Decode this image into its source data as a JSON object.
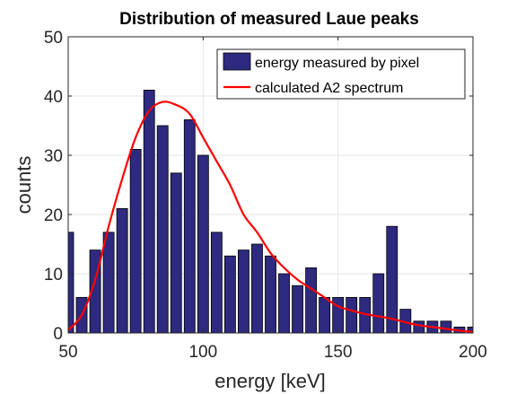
{
  "chart_data": {
    "type": "bar",
    "title": "Distribution of measured Laue peaks",
    "xlabel": "energy [keV]",
    "ylabel": "counts",
    "xlim": [
      50,
      200
    ],
    "ylim": [
      0,
      50
    ],
    "xticks": [
      "50",
      "100",
      "150",
      "200"
    ],
    "yticks": [
      "0",
      "10",
      "20",
      "30",
      "40",
      "50"
    ],
    "grid": true,
    "legend_position": "top-right",
    "colors": {
      "bars": "#2e2a7f",
      "curve": "#ff0000"
    },
    "series": [
      {
        "name": "energy measured by pixel",
        "type": "bar",
        "x": [
          50,
          55,
          60,
          65,
          70,
          75,
          80,
          85,
          90,
          95,
          100,
          105,
          110,
          115,
          120,
          125,
          130,
          135,
          140,
          145,
          150,
          155,
          160,
          165,
          170,
          175,
          180,
          185,
          190,
          195,
          200
        ],
        "values": [
          17,
          6,
          14,
          17,
          21,
          31,
          41,
          35,
          27,
          36,
          30,
          17,
          13,
          14,
          15,
          13,
          10,
          8,
          11,
          6,
          6,
          6,
          6,
          10,
          18,
          4,
          2,
          2,
          2,
          1,
          1
        ]
      },
      {
        "name": "calculated A2 spectrum",
        "type": "line",
        "x": [
          50,
          55,
          60,
          65,
          70,
          75,
          80,
          85,
          90,
          95,
          100,
          105,
          110,
          115,
          120,
          125,
          130,
          135,
          140,
          145,
          150,
          155,
          160,
          165,
          170,
          175,
          180,
          185,
          190,
          195,
          200
        ],
        "values": [
          0.5,
          3,
          9,
          18,
          26,
          33,
          37.5,
          39,
          38.5,
          37,
          33,
          29,
          25,
          20,
          17,
          13.5,
          11,
          9,
          7.5,
          6,
          4.5,
          3.8,
          3.2,
          2.8,
          2.4,
          1.8,
          1.3,
          1,
          0.7,
          0.4,
          0.2
        ]
      }
    ]
  }
}
